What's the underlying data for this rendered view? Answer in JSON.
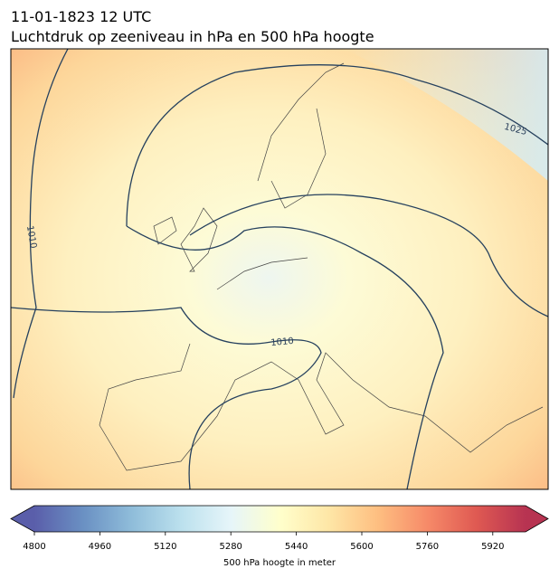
{
  "header": {
    "date": "11-01-1823 12 UTC",
    "title": "Luchtdruk op zeeniveau in hPa en 500 hPa hoogte"
  },
  "map": {
    "isobar_labels": [
      1010,
      1025,
      1010
    ]
  },
  "colorbar": {
    "label": "500 hPa hoogte in meter",
    "lim": [
      4800,
      6000
    ],
    "ticks": [
      4800,
      4960,
      5120,
      5280,
      5440,
      5600,
      5760,
      5920
    ],
    "colors": [
      "#313695",
      "#4575b4",
      "#74add1",
      "#abd9e9",
      "#e0f3f8",
      "#ffffbf",
      "#fee090",
      "#fdae61",
      "#f46d43",
      "#d73027",
      "#a50026"
    ]
  }
}
